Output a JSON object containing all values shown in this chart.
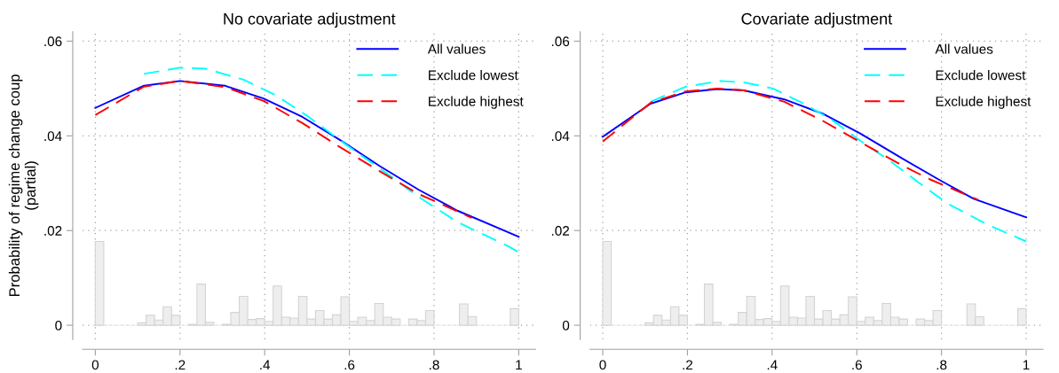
{
  "chart_data": [
    {
      "type": "line",
      "title": "No covariate adjustment",
      "ylabel": "Probability of regime change coup\n(partial)",
      "xlim": [
        -0.03,
        1.04
      ],
      "ylim": [
        -0.003,
        0.062
      ],
      "xticks": [
        0,
        {
          "value": 0.2,
          "label": ".2"
        },
        {
          "value": 0.4,
          "label": ".4"
        },
        {
          "value": 0.6,
          "label": ".6"
        },
        {
          "value": 0.8,
          "label": ".8"
        },
        1
      ],
      "yticks": [
        0,
        {
          "value": 0.02,
          "label": ".02"
        },
        {
          "value": 0.04,
          "label": ".04"
        },
        {
          "value": 0.06,
          "label": ".06"
        }
      ],
      "grid": true,
      "legend": "top right",
      "series": [
        {
          "type": "histogram",
          "color": "#eeeeee",
          "bins": [
            0,
            0.02,
            0.04,
            0.06,
            0.08,
            0.1,
            0.12,
            0.14,
            0.16,
            0.18,
            0.2,
            0.22,
            0.24,
            0.26,
            0.28,
            0.3,
            0.32,
            0.34,
            0.36,
            0.38,
            0.4,
            0.42,
            0.44,
            0.46,
            0.48,
            0.5,
            0.52,
            0.54,
            0.56,
            0.58,
            0.6,
            0.62,
            0.64,
            0.66,
            0.68,
            0.7,
            0.72,
            0.74,
            0.76,
            0.78,
            0.8,
            0.82,
            0.84,
            0.86,
            0.88,
            0.9,
            0.92,
            0.94,
            0.96,
            0.98,
            1.0
          ],
          "values": [
            0.0177,
            0,
            0,
            0,
            0,
            0.0005,
            0.0021,
            0.0011,
            0.0039,
            0.0021,
            0,
            0.0002,
            0.0087,
            0.0006,
            0,
            0.0002,
            0.0027,
            0.0061,
            0.0012,
            0.0014,
            0.0008,
            0.0083,
            0.0017,
            0.0015,
            0.0061,
            0.0013,
            0.0031,
            0.0013,
            0.0022,
            0.006,
            0.0008,
            0.0017,
            0.001,
            0.0046,
            0.0017,
            0.0013,
            0,
            0.0013,
            0.001,
            0.0031,
            0,
            0,
            0,
            0.0045,
            0.0018,
            0,
            0,
            0,
            0,
            0.0035
          ]
        },
        {
          "name": "All values",
          "color": "#0000ff",
          "line_style": "solid",
          "x": [
            0,
            0.115,
            0.2,
            0.306,
            0.397,
            0.489,
            0.58,
            0.672,
            0.764,
            0.855,
            1
          ],
          "values": [
            0.0459,
            0.0506,
            0.0516,
            0.0506,
            0.0479,
            0.044,
            0.039,
            0.0336,
            0.0286,
            0.0242,
            0.0187
          ]
        },
        {
          "name": "Exclude lowest",
          "color": "#00ffff",
          "line_style": "dashed",
          "x": [
            0.115,
            0.2,
            0.26,
            0.352,
            0.428,
            0.504,
            0.588,
            0.672,
            0.764,
            0.855,
            0.977,
            1
          ],
          "values": [
            0.0531,
            0.0544,
            0.0542,
            0.0518,
            0.0485,
            0.044,
            0.0384,
            0.0331,
            0.0271,
            0.0218,
            0.0166,
            0.0154
          ]
        },
        {
          "name": "Exclude highest",
          "color": "#ff0000",
          "line_style": "dashed",
          "x": [
            0,
            0.115,
            0.2,
            0.306,
            0.397,
            0.489,
            0.58,
            0.672,
            0.764,
            0.889
          ],
          "values": [
            0.0444,
            0.0504,
            0.0516,
            0.0503,
            0.0474,
            0.0427,
            0.0375,
            0.0325,
            0.0277,
            0.0227
          ]
        }
      ]
    },
    {
      "type": "line",
      "title": "Covariate adjustment",
      "xlim": [
        -0.03,
        1.04
      ],
      "ylim": [
        -0.003,
        0.062
      ],
      "xticks": [
        0,
        {
          "value": 0.2,
          "label": ".2"
        },
        {
          "value": 0.4,
          "label": ".4"
        },
        {
          "value": 0.6,
          "label": ".6"
        },
        {
          "value": 0.8,
          "label": ".8"
        },
        1
      ],
      "yticks": [
        0,
        {
          "value": 0.02,
          "label": ".02"
        },
        {
          "value": 0.04,
          "label": ".04"
        },
        {
          "value": 0.06,
          "label": ".06"
        }
      ],
      "grid": true,
      "legend": "top right",
      "series": [
        {
          "type": "histogram",
          "color": "#eeeeee",
          "bins": [
            0,
            0.02,
            0.04,
            0.06,
            0.08,
            0.1,
            0.12,
            0.14,
            0.16,
            0.18,
            0.2,
            0.22,
            0.24,
            0.26,
            0.28,
            0.3,
            0.32,
            0.34,
            0.36,
            0.38,
            0.4,
            0.42,
            0.44,
            0.46,
            0.48,
            0.5,
            0.52,
            0.54,
            0.56,
            0.58,
            0.6,
            0.62,
            0.64,
            0.66,
            0.68,
            0.7,
            0.72,
            0.74,
            0.76,
            0.78,
            0.8,
            0.82,
            0.84,
            0.86,
            0.88,
            0.9,
            0.92,
            0.94,
            0.96,
            0.98,
            1.0
          ],
          "values": [
            0.0177,
            0,
            0,
            0,
            0,
            0.0005,
            0.0021,
            0.0011,
            0.0039,
            0.0021,
            0,
            0.0002,
            0.0087,
            0.0006,
            0,
            0.0002,
            0.0027,
            0.0061,
            0.0012,
            0.0014,
            0.0008,
            0.0083,
            0.0017,
            0.0015,
            0.0061,
            0.0013,
            0.0031,
            0.0013,
            0.0022,
            0.006,
            0.0008,
            0.0017,
            0.001,
            0.0046,
            0.0017,
            0.0013,
            0,
            0.0013,
            0.001,
            0.0031,
            0,
            0,
            0,
            0.0045,
            0.0018,
            0,
            0,
            0,
            0,
            0.0035
          ]
        },
        {
          "name": "All values",
          "color": "#0000ff",
          "line_style": "solid",
          "x": [
            0,
            0.113,
            0.196,
            0.271,
            0.333,
            0.429,
            0.519,
            0.608,
            0.704,
            0.793,
            0.876,
            1
          ],
          "values": [
            0.0398,
            0.0468,
            0.0492,
            0.0499,
            0.0496,
            0.0477,
            0.0447,
            0.0405,
            0.0354,
            0.0308,
            0.0267,
            0.0228
          ]
        },
        {
          "name": "Exclude lowest",
          "color": "#00ffff",
          "line_style": "dashed",
          "x": [
            0.113,
            0.196,
            0.278,
            0.333,
            0.402,
            0.47,
            0.539,
            0.608,
            0.677,
            0.745,
            0.814,
            0.91,
            1
          ],
          "values": [
            0.0472,
            0.0504,
            0.0516,
            0.0513,
            0.05,
            0.047,
            0.0435,
            0.039,
            0.0348,
            0.0302,
            0.0257,
            0.0212,
            0.0177
          ]
        },
        {
          "name": "Exclude highest",
          "color": "#ff0000",
          "line_style": "dashed",
          "x": [
            0,
            0.113,
            0.196,
            0.271,
            0.333,
            0.429,
            0.519,
            0.608,
            0.704,
            0.773,
            0.886
          ],
          "values": [
            0.0388,
            0.047,
            0.0494,
            0.05,
            0.0496,
            0.0472,
            0.0432,
            0.0387,
            0.0339,
            0.0308,
            0.0265
          ]
        }
      ]
    }
  ]
}
